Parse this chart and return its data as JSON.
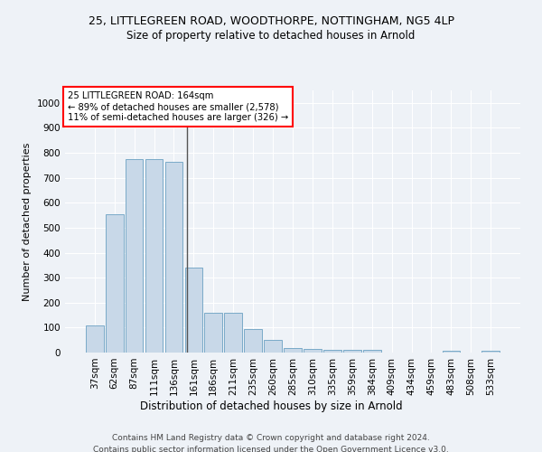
{
  "title": "25, LITTLEGREEN ROAD, WOODTHORPE, NOTTINGHAM, NG5 4LP",
  "subtitle": "Size of property relative to detached houses in Arnold",
  "xlabel": "Distribution of detached houses by size in Arnold",
  "ylabel": "Number of detached properties",
  "bar_color": "#c8d8e8",
  "bar_edge_color": "#7aaac8",
  "categories": [
    "37sqm",
    "62sqm",
    "87sqm",
    "111sqm",
    "136sqm",
    "161sqm",
    "186sqm",
    "211sqm",
    "235sqm",
    "260sqm",
    "285sqm",
    "310sqm",
    "335sqm",
    "359sqm",
    "384sqm",
    "409sqm",
    "434sqm",
    "459sqm",
    "483sqm",
    "508sqm",
    "533sqm"
  ],
  "values": [
    110,
    555,
    775,
    775,
    765,
    340,
    160,
    160,
    95,
    50,
    18,
    13,
    12,
    10,
    10,
    0,
    0,
    0,
    8,
    0,
    9
  ],
  "annotation_line1": "25 LITTLEGREEN ROAD: 164sqm",
  "annotation_line2": "← 89% of detached houses are smaller (2,578)",
  "annotation_line3": "11% of semi-detached houses are larger (326) →",
  "ylim": [
    0,
    1050
  ],
  "yticks": [
    0,
    100,
    200,
    300,
    400,
    500,
    600,
    700,
    800,
    900,
    1000
  ],
  "footer_line1": "Contains HM Land Registry data © Crown copyright and database right 2024.",
  "footer_line2": "Contains public sector information licensed under the Open Government Licence v3.0.",
  "background_color": "#eef2f7",
  "plot_bg_color": "#eef2f7",
  "title_fontsize": 9,
  "subtitle_fontsize": 8.5,
  "ylabel_fontsize": 8,
  "xlabel_fontsize": 8.5,
  "tick_fontsize": 7.5,
  "footer_fontsize": 6.5
}
